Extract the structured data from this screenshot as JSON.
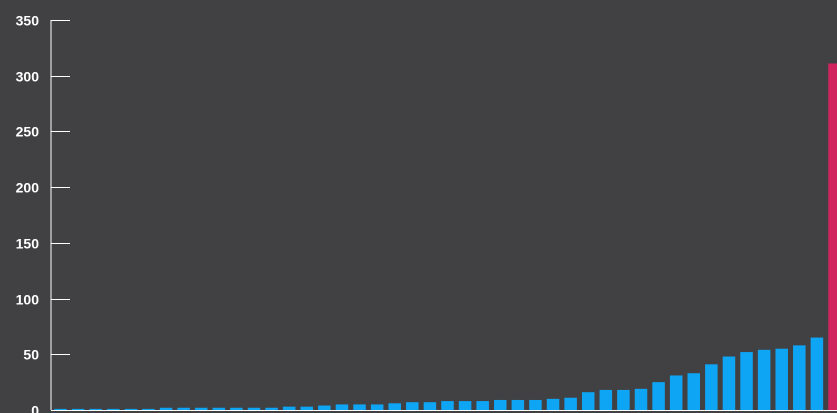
{
  "chart_data": {
    "type": "bar",
    "title": "",
    "xlabel": "",
    "ylabel": "",
    "ylim": [
      0,
      350
    ],
    "yticks": [
      0,
      50,
      100,
      150,
      200,
      250,
      300,
      350
    ],
    "grid": false,
    "background_color": "#414143",
    "bar_color": "#0ea5f5",
    "highlight_color": "#d1245e",
    "axis_color": "#ffffff",
    "values": [
      1,
      1,
      1,
      1,
      1,
      1,
      2,
      2,
      2,
      2,
      2,
      2,
      2,
      3,
      3,
      4,
      5,
      5,
      5,
      6,
      7,
      7,
      8,
      8,
      8,
      9,
      9,
      9,
      10,
      11,
      16,
      18,
      18,
      19,
      25,
      31,
      33,
      41,
      48,
      52,
      54,
      55,
      58,
      65,
      311
    ],
    "highlight_index": 44
  }
}
